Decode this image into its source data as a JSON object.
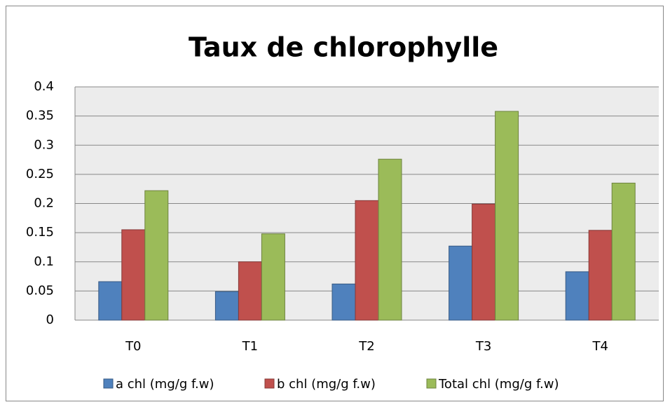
{
  "chart_data": {
    "type": "bar",
    "title": "Taux de chlorophylle",
    "categories": [
      "T0",
      "T1",
      "T2",
      "T3",
      "T4"
    ],
    "series": [
      {
        "name": "a chl (mg/g f.w)",
        "color": "#4f81bd",
        "values": [
          0.066,
          0.049,
          0.062,
          0.127,
          0.083
        ]
      },
      {
        "name": "b chl (mg/g f.w)",
        "color": "#c0504d",
        "values": [
          0.155,
          0.1,
          0.205,
          0.199,
          0.154
        ]
      },
      {
        "name": "Total chl (mg/g f.w)",
        "color": "#9bbb59",
        "values": [
          0.222,
          0.148,
          0.276,
          0.358,
          0.235
        ]
      }
    ],
    "ylim": [
      0,
      0.4
    ],
    "yticks": [
      0,
      0.05,
      0.1,
      0.15,
      0.2,
      0.25,
      0.3,
      0.35,
      0.4
    ],
    "grid": true,
    "legend": "bottom"
  }
}
